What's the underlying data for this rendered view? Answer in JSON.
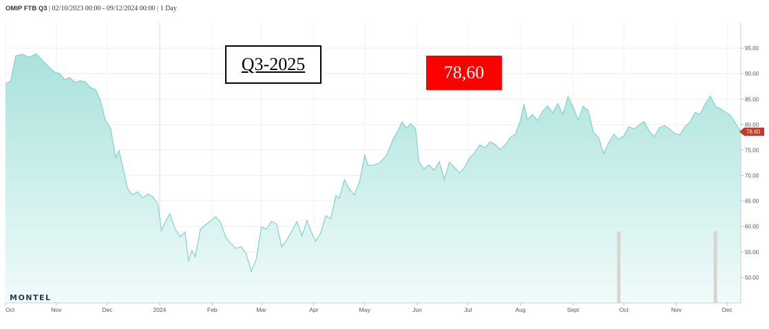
{
  "header": {
    "symbol": "OMIP FTB Q3",
    "range": "02/10/2023 00:00 - 09/12/2024 00:00",
    "interval": "1 Day"
  },
  "overlay": {
    "product_label": "Q3-2025",
    "price_label": "78,60",
    "price_bg_color": "#ff0000"
  },
  "logo_text": "MONTEL",
  "colors": {
    "area_top": "#a9e2dc",
    "area_bottom": "#f0fbfa",
    "line": "#7fd3c9",
    "last_price": "#c0392b"
  },
  "chart_data": {
    "type": "area",
    "title": "",
    "xlabel": "",
    "ylabel": "",
    "ylim": [
      45,
      100
    ],
    "yticks": [
      "95.00",
      "90.00",
      "85.00",
      "80.00",
      "75.00",
      "70.00",
      "65.00",
      "60.00",
      "55.00",
      "50.00"
    ],
    "ytick_values": [
      95,
      90,
      85,
      80,
      75,
      70,
      65,
      60,
      55,
      50
    ],
    "xticks": [
      "Oct",
      "Nov",
      "Dec",
      "2024",
      "Feb",
      "Mar",
      "Apr",
      "May",
      "Jun",
      "Jul",
      "Aug",
      "Sept",
      "Oct",
      "Nov",
      "Dec"
    ],
    "xtick_dates": [
      "2023-10-02",
      "2023-11-01",
      "2023-12-01",
      "2024-01-01",
      "2024-02-01",
      "2024-03-01",
      "2024-04-01",
      "2024-05-01",
      "2024-06-01",
      "2024-07-01",
      "2024-08-01",
      "2024-09-01",
      "2024-10-01",
      "2024-11-01",
      "2024-12-01"
    ],
    "x_range": [
      "2023-10-02",
      "2024-12-09"
    ],
    "grid": true,
    "last_value_label": "78.60",
    "series": [
      {
        "values": [
          [
            "2023-10-02",
            88.0
          ],
          [
            "2023-10-05",
            88.5
          ],
          [
            "2023-10-08",
            93.5
          ],
          [
            "2023-10-12",
            93.8
          ],
          [
            "2023-10-16",
            93.2
          ],
          [
            "2023-10-20",
            93.9
          ],
          [
            "2023-10-24",
            92.5
          ],
          [
            "2023-10-28",
            91.2
          ],
          [
            "2023-10-31",
            90.3
          ],
          [
            "2023-11-03",
            90.0
          ],
          [
            "2023-11-06",
            88.8
          ],
          [
            "2023-11-09",
            89.2
          ],
          [
            "2023-11-12",
            88.3
          ],
          [
            "2023-11-15",
            88.6
          ],
          [
            "2023-11-18",
            88.4
          ],
          [
            "2023-11-21",
            87.3
          ],
          [
            "2023-11-24",
            86.9
          ],
          [
            "2023-11-27",
            84.8
          ],
          [
            "2023-11-30",
            80.8
          ],
          [
            "2023-12-03",
            79.3
          ],
          [
            "2023-12-06",
            73.5
          ],
          [
            "2023-12-08",
            74.9
          ],
          [
            "2023-12-10",
            72.0
          ],
          [
            "2023-12-13",
            67.4
          ],
          [
            "2023-12-16",
            66.2
          ],
          [
            "2023-12-19",
            66.8
          ],
          [
            "2023-12-22",
            65.6
          ],
          [
            "2023-12-25",
            66.4
          ],
          [
            "2023-12-28",
            65.8
          ],
          [
            "2023-12-31",
            64.3
          ],
          [
            "2024-01-02",
            59.2
          ],
          [
            "2024-01-05",
            61.3
          ],
          [
            "2024-01-07",
            62.5
          ],
          [
            "2024-01-10",
            59.6
          ],
          [
            "2024-01-13",
            58.0
          ],
          [
            "2024-01-16",
            58.9
          ],
          [
            "2024-01-18",
            53.2
          ],
          [
            "2024-01-20",
            55.3
          ],
          [
            "2024-01-22",
            54.0
          ],
          [
            "2024-01-25",
            59.4
          ],
          [
            "2024-01-28",
            60.3
          ],
          [
            "2024-01-31",
            61.1
          ],
          [
            "2024-02-03",
            61.9
          ],
          [
            "2024-02-06",
            60.8
          ],
          [
            "2024-02-09",
            57.9
          ],
          [
            "2024-02-12",
            56.6
          ],
          [
            "2024-02-15",
            55.7
          ],
          [
            "2024-02-18",
            56.0
          ],
          [
            "2024-02-21",
            54.7
          ],
          [
            "2024-02-24",
            51.2
          ],
          [
            "2024-02-27",
            53.5
          ],
          [
            "2024-03-01",
            59.9
          ],
          [
            "2024-03-04",
            59.5
          ],
          [
            "2024-03-07",
            61.0
          ],
          [
            "2024-03-10",
            60.5
          ],
          [
            "2024-03-13",
            56.0
          ],
          [
            "2024-03-16",
            57.3
          ],
          [
            "2024-03-19",
            59.1
          ],
          [
            "2024-03-22",
            61.0
          ],
          [
            "2024-03-25",
            58.1
          ],
          [
            "2024-03-28",
            61.2
          ],
          [
            "2024-03-30",
            59.4
          ],
          [
            "2024-04-02",
            57.1
          ],
          [
            "2024-04-05",
            58.7
          ],
          [
            "2024-04-08",
            62.1
          ],
          [
            "2024-04-11",
            61.5
          ],
          [
            "2024-04-14",
            66.1
          ],
          [
            "2024-04-16",
            65.5
          ],
          [
            "2024-04-19",
            69.2
          ],
          [
            "2024-04-22",
            67.3
          ],
          [
            "2024-04-25",
            66.2
          ],
          [
            "2024-04-28",
            68.8
          ],
          [
            "2024-05-01",
            74.0
          ],
          [
            "2024-05-03",
            72.0
          ],
          [
            "2024-05-06",
            72.0
          ],
          [
            "2024-05-10",
            72.5
          ],
          [
            "2024-05-14",
            74.0
          ],
          [
            "2024-05-18",
            77.3
          ],
          [
            "2024-05-21",
            79.0
          ],
          [
            "2024-05-23",
            80.5
          ],
          [
            "2024-05-26",
            79.3
          ],
          [
            "2024-05-28",
            80.2
          ],
          [
            "2024-05-31",
            79.2
          ],
          [
            "2024-06-02",
            72.7
          ],
          [
            "2024-06-05",
            71.3
          ],
          [
            "2024-06-08",
            72.1
          ],
          [
            "2024-06-11",
            71.0
          ],
          [
            "2024-06-14",
            72.7
          ],
          [
            "2024-06-17",
            69.2
          ],
          [
            "2024-06-20",
            72.6
          ],
          [
            "2024-06-23",
            71.6
          ],
          [
            "2024-06-26",
            70.5
          ],
          [
            "2024-06-29",
            71.6
          ],
          [
            "2024-07-02",
            73.5
          ],
          [
            "2024-07-05",
            74.5
          ],
          [
            "2024-07-08",
            76.0
          ],
          [
            "2024-07-11",
            75.4
          ],
          [
            "2024-07-14",
            76.6
          ],
          [
            "2024-07-17",
            76.1
          ],
          [
            "2024-07-20",
            75.1
          ],
          [
            "2024-07-23",
            76.0
          ],
          [
            "2024-07-26",
            77.5
          ],
          [
            "2024-07-29",
            78.1
          ],
          [
            "2024-08-01",
            80.9
          ],
          [
            "2024-08-03",
            84.0
          ],
          [
            "2024-08-05",
            81.0
          ],
          [
            "2024-08-08",
            82.0
          ],
          [
            "2024-08-11",
            80.8
          ],
          [
            "2024-08-14",
            82.6
          ],
          [
            "2024-08-17",
            83.7
          ],
          [
            "2024-08-20",
            82.3
          ],
          [
            "2024-08-23",
            84.1
          ],
          [
            "2024-08-26",
            82.0
          ],
          [
            "2024-08-29",
            85.5
          ],
          [
            "2024-09-01",
            83.5
          ],
          [
            "2024-09-04",
            80.9
          ],
          [
            "2024-09-07",
            83.6
          ],
          [
            "2024-09-10",
            82.7
          ],
          [
            "2024-09-13",
            78.5
          ],
          [
            "2024-09-16",
            77.5
          ],
          [
            "2024-09-19",
            74.3
          ],
          [
            "2024-09-22",
            76.4
          ],
          [
            "2024-09-25",
            78.1
          ],
          [
            "2024-09-28",
            77.1
          ],
          [
            "2024-10-01",
            77.8
          ],
          [
            "2024-10-04",
            79.6
          ],
          [
            "2024-10-07",
            79.1
          ],
          [
            "2024-10-10",
            79.9
          ],
          [
            "2024-10-13",
            80.6
          ],
          [
            "2024-10-16",
            78.7
          ],
          [
            "2024-10-19",
            77.6
          ],
          [
            "2024-10-22",
            79.4
          ],
          [
            "2024-10-25",
            79.8
          ],
          [
            "2024-10-28",
            79.1
          ],
          [
            "2024-10-31",
            78.3
          ],
          [
            "2024-11-03",
            78.0
          ],
          [
            "2024-11-06",
            79.5
          ],
          [
            "2024-11-09",
            80.5
          ],
          [
            "2024-11-12",
            82.4
          ],
          [
            "2024-11-15",
            82.0
          ],
          [
            "2024-11-18",
            84.1
          ],
          [
            "2024-11-21",
            85.6
          ],
          [
            "2024-11-24",
            83.6
          ],
          [
            "2024-11-27",
            83.1
          ],
          [
            "2024-11-30",
            82.4
          ],
          [
            "2024-12-03",
            81.8
          ],
          [
            "2024-12-06",
            80.2
          ],
          [
            "2024-12-09",
            78.6
          ]
        ]
      }
    ],
    "volume_bars": [
      {
        "date": "2024-09-28",
        "value": 59
      },
      {
        "date": "2024-11-24",
        "value": 59
      }
    ]
  }
}
